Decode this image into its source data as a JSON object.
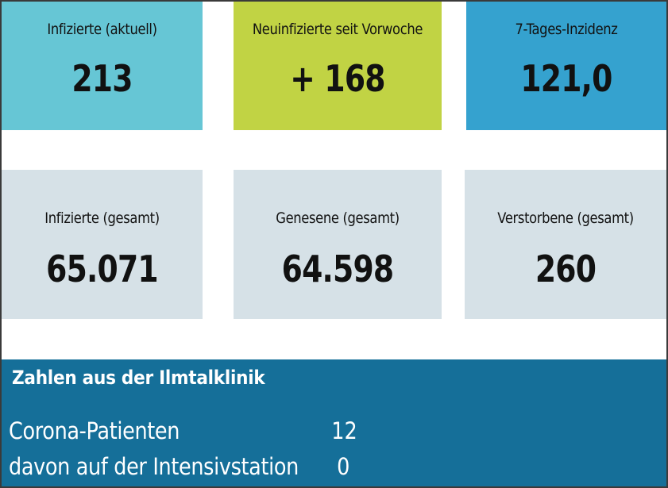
{
  "tiles_top": [
    {
      "label": "Infizierte (aktuell)",
      "value": "213",
      "color": "#66c6d5"
    },
    {
      "label": "Neuinfizierte seit Vorwoche",
      "value": "+ 168",
      "color": "#c1d344"
    },
    {
      "label": "7-Tages-Inzidenz",
      "value": "121,0",
      "color": "#35a2cf"
    }
  ],
  "tiles_bottom": [
    {
      "label": "Infizierte (gesamt)",
      "value": "65.071",
      "color": "#d6e1e7"
    },
    {
      "label": "Genesene (gesamt)",
      "value": "64.598",
      "color": "#d6e1e7"
    },
    {
      "label": "Verstorbene (gesamt)",
      "value": "260",
      "color": "#d6e1e7"
    }
  ],
  "clinic": {
    "title": "Zahlen aus der Ilmtalklinik",
    "color": "#156f99",
    "rows": [
      {
        "label": "Corona-Patienten",
        "value": "12"
      },
      {
        "label": "davon auf der Intensivstation",
        "value": "0"
      }
    ]
  }
}
